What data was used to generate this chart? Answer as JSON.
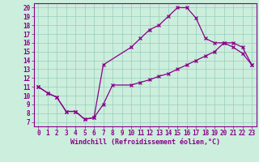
{
  "xlabel": "Windchill (Refroidissement éolien,°C)",
  "bg_color": "#cceedd",
  "line_color": "#880088",
  "xlim": [
    -0.5,
    23.5
  ],
  "ylim": [
    6.5,
    20.5
  ],
  "xticks": [
    0,
    1,
    2,
    3,
    4,
    5,
    6,
    7,
    8,
    9,
    10,
    11,
    12,
    13,
    14,
    15,
    16,
    17,
    18,
    19,
    20,
    21,
    22,
    23
  ],
  "yticks": [
    7,
    8,
    9,
    10,
    11,
    12,
    13,
    14,
    15,
    16,
    17,
    18,
    19,
    20
  ],
  "line1_x": [
    0,
    1,
    2,
    3,
    4,
    5,
    6,
    7,
    8,
    10,
    11,
    12,
    13,
    14,
    15,
    16,
    17,
    18,
    19,
    20,
    21,
    22,
    23
  ],
  "line1_y": [
    11,
    10.3,
    9.8,
    8.2,
    8.2,
    7.3,
    7.5,
    9.0,
    11.2,
    11.2,
    11.5,
    11.8,
    12.2,
    12.5,
    13.0,
    13.5,
    14.0,
    14.5,
    15.0,
    16.0,
    16.0,
    15.5,
    13.5
  ],
  "line2_x": [
    0,
    1,
    2,
    3,
    4,
    5,
    6,
    7,
    10,
    11,
    12,
    13,
    14,
    15,
    16,
    17,
    18,
    19,
    20,
    21,
    22,
    23
  ],
  "line2_y": [
    11,
    10.3,
    9.8,
    8.2,
    8.2,
    7.3,
    7.5,
    13.5,
    15.5,
    16.5,
    17.5,
    18.0,
    19.0,
    20.0,
    20.0,
    18.8,
    16.5,
    16.0,
    16.0,
    15.5,
    14.8,
    13.5
  ],
  "grid_color": "#99ccbb",
  "marker": "x",
  "markersize": 3,
  "linewidth": 0.9,
  "tick_fontsize": 5.5,
  "xlabel_fontsize": 6.0
}
